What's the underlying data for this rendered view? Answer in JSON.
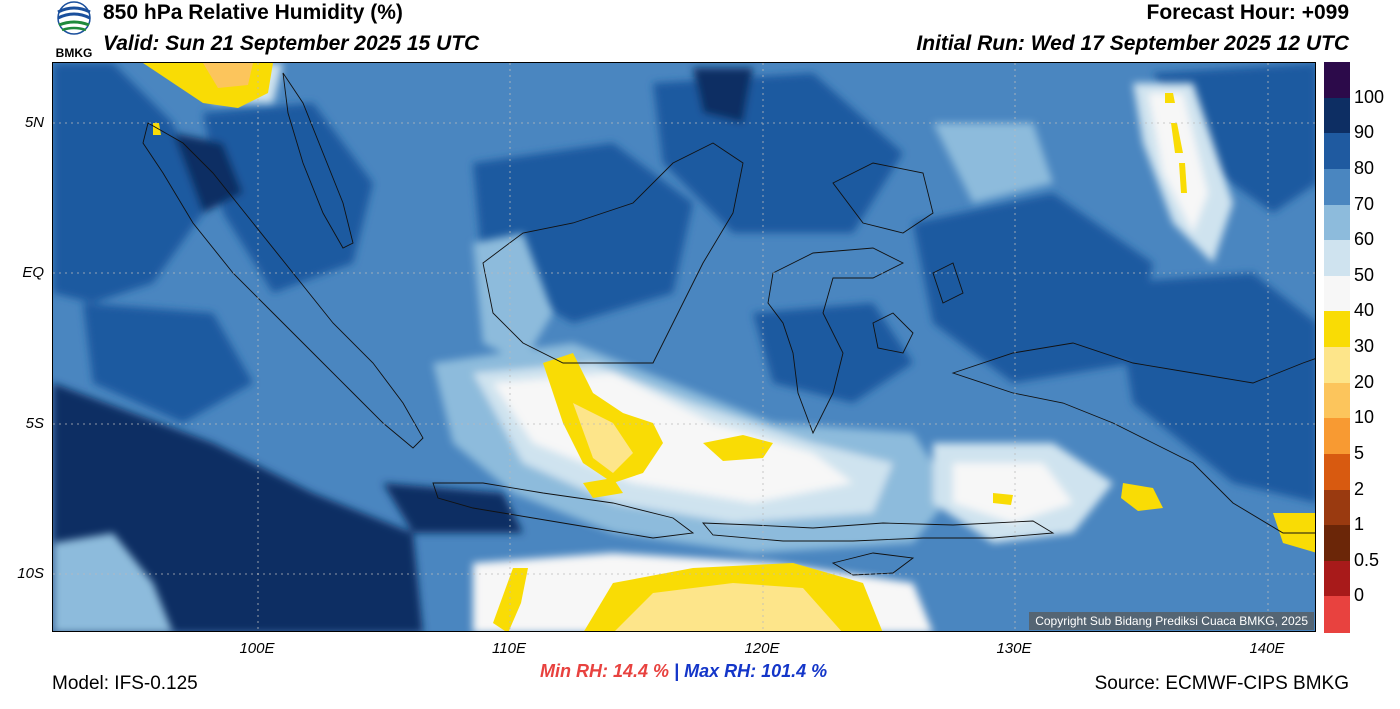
{
  "header": {
    "title": "850 hPa Relative Humidity (%)",
    "valid": "Valid: Sun 21 September 2025 15 UTC",
    "forecast_hour": "Forecast Hour: +099",
    "initial_run": "Initial Run: Wed 17 September 2025 12 UTC",
    "logo_text": "BMKG"
  },
  "map": {
    "lat_labels": [
      "5N",
      "EQ",
      "5S",
      "10S"
    ],
    "lon_labels": [
      "100E",
      "110E",
      "120E",
      "130E",
      "140E"
    ],
    "copyright": "Copyright Sub Bidang Prediksi Cuaca BMKG, 2025"
  },
  "stats": {
    "min_rh": "Min RH:  14.4 %",
    "separator": "|",
    "max_rh": "Max RH: 101.4 %"
  },
  "footer": {
    "model": "Model: IFS-0.125",
    "source": "Source: ECMWF-CIPS BMKG"
  },
  "colorbar": {
    "labels": [
      "100",
      "90",
      "80",
      "70",
      "60",
      "50",
      "40",
      "30",
      "20",
      "10",
      "5",
      "2",
      "1",
      "0.5",
      "0"
    ],
    "colors": [
      "#2c0a4a",
      "#0d2e63",
      "#1f5aa0",
      "#4a86c0",
      "#8dbbdc",
      "#cfe3ef",
      "#f7f7f7",
      "#f9dc05",
      "#fde58a",
      "#fcc55c",
      "#f89a32",
      "#d85a10",
      "#9a3a10",
      "#6b2608",
      "#a81a1a",
      "#e8423f"
    ]
  }
}
